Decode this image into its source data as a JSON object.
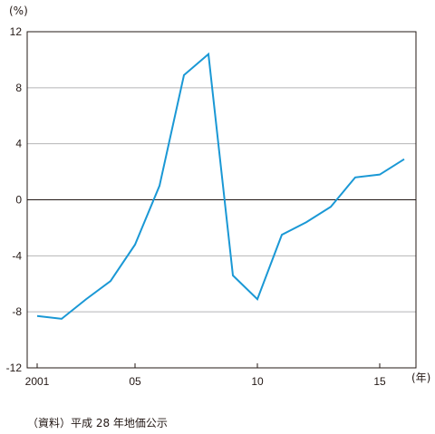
{
  "chart_data": {
    "type": "line",
    "y_unit": "(%)",
    "x_unit": "(年)",
    "source": "（資料）平成 28 年地価公示",
    "ylim": [
      -12,
      12
    ],
    "xlim": [
      2001,
      2016
    ],
    "y_ticks": [
      12,
      8,
      4,
      0,
      -4,
      -8,
      -12
    ],
    "y_tick_labels": [
      "12",
      "8",
      "4",
      "0",
      "-4",
      "-8",
      "-12"
    ],
    "x_ticks": [
      2001,
      2005,
      2010,
      2015
    ],
    "x_tick_labels": [
      "2001",
      "05",
      "10",
      "15"
    ],
    "grid": "horizontal",
    "series": [
      {
        "color": "#1a98d5",
        "x": [
          2001,
          2002,
          2003,
          2004,
          2005,
          2006,
          2007,
          2008,
          2009,
          2010,
          2011,
          2012,
          2013,
          2014,
          2015,
          2016
        ],
        "values": [
          -8.3,
          -8.5,
          -7.1,
          -5.8,
          -3.2,
          1.0,
          8.9,
          10.4,
          -5.4,
          -7.1,
          -2.5,
          -1.6,
          -0.5,
          1.6,
          1.8,
          2.9
        ]
      }
    ]
  }
}
